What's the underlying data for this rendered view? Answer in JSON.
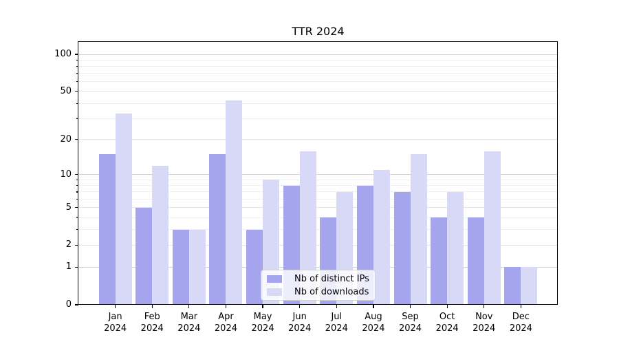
{
  "chart_data": {
    "type": "bar",
    "title": "TTR 2024",
    "months": [
      "Jan",
      "Feb",
      "Mar",
      "Apr",
      "May",
      "Jun",
      "Jul",
      "Aug",
      "Sep",
      "Oct",
      "Nov",
      "Dec"
    ],
    "year": "2024",
    "series": [
      {
        "name": "Nb of distinct IPs",
        "color": "#a5a5ee",
        "values": [
          15,
          5,
          3,
          15,
          3,
          8,
          4,
          8,
          7,
          4,
          4,
          1
        ]
      },
      {
        "name": "Nb of downloads",
        "color": "#d8d8f7",
        "values": [
          33,
          12,
          3,
          42,
          9,
          16,
          7,
          11,
          15,
          7,
          16,
          1
        ]
      }
    ],
    "yscale": "log1p",
    "y_ticks": [
      0,
      1,
      2,
      5,
      10,
      20,
      50,
      100
    ],
    "y_minor_gridlines": [
      3,
      4,
      6,
      7,
      8,
      9,
      30,
      40,
      60,
      70,
      80,
      90
    ],
    "y_emphasis_gridlines": [
      1,
      10,
      100
    ],
    "ylim": [
      0,
      126
    ],
    "xlabel": "",
    "ylabel": "",
    "grid": true,
    "legend_position": "lower center"
  },
  "colors": {
    "background": "#ffffff",
    "axis": "#000000",
    "grid_emphasis": "#d0d0d0",
    "grid_labeled": "#e4e4e4",
    "grid_minor": "#efefef",
    "legend_border": "#d2d2d2"
  }
}
